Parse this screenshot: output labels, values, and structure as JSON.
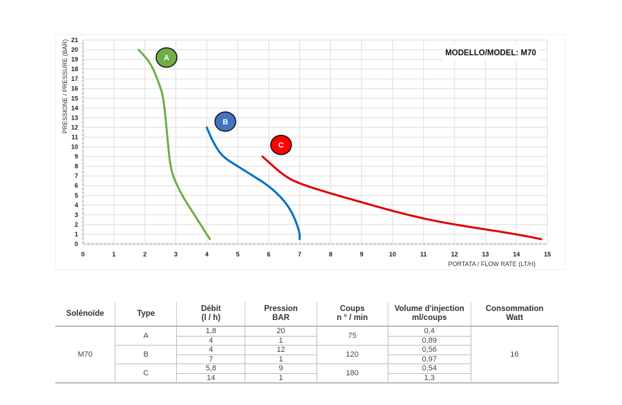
{
  "chart_data": {
    "type": "line",
    "title": "MODELLO/MODEL: M70",
    "xlabel": "PORTATA / FLOW RATE (LT/H)",
    "ylabel": "PRESSIONE / PRESSURE (BAR)",
    "xlim": [
      0,
      15
    ],
    "ylim": [
      0,
      21
    ],
    "grid": true,
    "xticks": [
      0,
      1,
      2,
      3,
      4,
      5,
      6,
      7,
      8,
      9,
      10,
      11,
      12,
      13,
      14,
      15
    ],
    "yticks": [
      0,
      1,
      2,
      3,
      4,
      5,
      6,
      7,
      8,
      9,
      10,
      11,
      12,
      13,
      14,
      15,
      16,
      17,
      18,
      19,
      20,
      21
    ],
    "series": [
      {
        "name": "A",
        "color": "#70ad47",
        "label_at": [
          2.7,
          19.2
        ],
        "points": [
          [
            1.8,
            20
          ],
          [
            2.2,
            18.6
          ],
          [
            2.5,
            16.2
          ],
          [
            2.6,
            15
          ],
          [
            2.7,
            12
          ],
          [
            2.8,
            8.5
          ],
          [
            2.9,
            7
          ],
          [
            3.2,
            5
          ],
          [
            3.5,
            3.5
          ],
          [
            3.8,
            2
          ],
          [
            4.1,
            0.5
          ]
        ]
      },
      {
        "name": "B",
        "color": "#0070c0",
        "label_color": "#4472c4",
        "label_at": [
          4.6,
          12.6
        ],
        "points": [
          [
            4,
            12
          ],
          [
            4.2,
            10.5
          ],
          [
            4.5,
            9
          ],
          [
            5,
            8
          ],
          [
            5.5,
            7
          ],
          [
            6,
            6
          ],
          [
            6.5,
            4.5
          ],
          [
            6.8,
            3
          ],
          [
            7,
            1.2
          ],
          [
            7,
            0.5
          ]
        ]
      },
      {
        "name": "C",
        "color": "#e00000",
        "label_color": "#ff0000",
        "label_at": [
          6.4,
          10.2
        ],
        "points": [
          [
            5.8,
            9
          ],
          [
            6.5,
            7
          ],
          [
            7,
            6.2
          ],
          [
            8,
            5.2
          ],
          [
            9,
            4.3
          ],
          [
            10,
            3.4
          ],
          [
            11,
            2.6
          ],
          [
            12,
            2
          ],
          [
            13,
            1.5
          ],
          [
            14,
            1
          ],
          [
            14.8,
            0.5
          ]
        ]
      }
    ]
  },
  "table": {
    "headers": [
      [
        "Solénoïde",
        ""
      ],
      [
        "Type",
        ""
      ],
      [
        "Débit",
        "(l / h)"
      ],
      [
        "Pression",
        "BAR"
      ],
      [
        "Coups",
        "n ° / min"
      ],
      [
        "Volume d'injection",
        "ml/coups"
      ],
      [
        "Consommation",
        "Watt"
      ]
    ],
    "model": "M70",
    "watt": "16",
    "groups": [
      {
        "type": "A",
        "coups": "75",
        "rows": [
          [
            "1,8",
            "20",
            "0,4"
          ],
          [
            "4",
            "1",
            "0,89"
          ]
        ]
      },
      {
        "type": "B",
        "coups": "120",
        "rows": [
          [
            "4",
            "12",
            "0,56"
          ],
          [
            "7",
            "1",
            "0,97"
          ]
        ]
      },
      {
        "type": "C",
        "coups": "180",
        "rows": [
          [
            "5,8",
            "9",
            "0,54"
          ],
          [
            "14",
            "1",
            "1,3"
          ]
        ]
      }
    ]
  }
}
